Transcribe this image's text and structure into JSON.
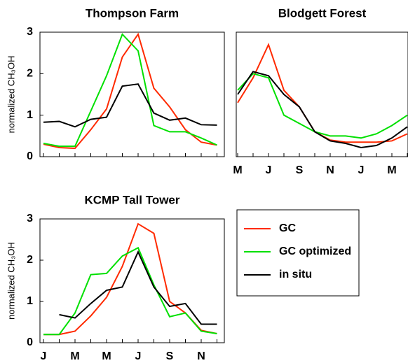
{
  "chart_data": [
    {
      "type": "line",
      "title": "Thompson Farm",
      "ylabel": "normalized CH₃OH",
      "categories": [
        null,
        null,
        null,
        null,
        null,
        null,
        null,
        null,
        null,
        null,
        null,
        null
      ],
      "ylim": [
        0,
        3
      ],
      "yticks": [
        0,
        1,
        2,
        3
      ],
      "series": [
        {
          "color": "#ff2a00",
          "values": [
            0.3,
            0.22,
            0.2,
            0.65,
            1.15,
            2.4,
            2.95,
            1.65,
            1.2,
            0.65,
            0.35,
            0.28
          ]
        },
        {
          "color": "#00e000",
          "values": [
            0.32,
            0.25,
            0.25,
            1.1,
            1.95,
            2.95,
            2.55,
            0.75,
            0.6,
            0.6,
            0.45,
            0.28
          ]
        },
        {
          "color": "#000000",
          "values": [
            0.83,
            0.85,
            0.72,
            0.9,
            0.95,
            1.7,
            1.75,
            1.05,
            0.88,
            0.93,
            0.77,
            0.76
          ]
        }
      ]
    },
    {
      "type": "line",
      "title": "Blodgett Forest",
      "categories": [
        "M",
        null,
        "J",
        null,
        "S",
        null,
        "N",
        null,
        "J",
        null,
        "M",
        null
      ],
      "ylim": [
        0,
        3
      ],
      "series": [
        {
          "color": "#ff2a00",
          "values": [
            1.3,
            1.9,
            2.7,
            1.6,
            1.2,
            0.6,
            0.4,
            0.35,
            0.35,
            0.35,
            0.38,
            0.55
          ]
        },
        {
          "color": "#00e000",
          "values": [
            1.6,
            2.0,
            1.9,
            1.0,
            0.8,
            0.6,
            0.5,
            0.5,
            0.45,
            0.55,
            0.75,
            1.0
          ]
        },
        {
          "color": "#000000",
          "values": [
            1.5,
            2.05,
            1.95,
            1.5,
            1.2,
            0.6,
            0.38,
            0.32,
            0.22,
            0.27,
            0.45,
            0.72
          ]
        }
      ]
    },
    {
      "type": "line",
      "title": "KCMP Tall Tower",
      "ylabel": "normalized CH₃OH",
      "categories": [
        "J",
        null,
        "M",
        null,
        "M",
        null,
        "J",
        null,
        "S",
        null,
        "N",
        null
      ],
      "ylim": [
        0,
        3
      ],
      "yticks": [
        0,
        1,
        2,
        3
      ],
      "legend": "right",
      "series": [
        {
          "name": "GC",
          "color": "#ff2a00",
          "values": [
            0.2,
            0.2,
            0.28,
            0.65,
            1.1,
            1.85,
            2.88,
            2.65,
            1.0,
            0.72,
            0.3,
            0.22
          ]
        },
        {
          "name": "GC optimized",
          "color": "#00e000",
          "values": [
            0.2,
            0.2,
            0.72,
            1.65,
            1.68,
            2.1,
            2.3,
            1.4,
            0.63,
            0.72,
            0.28,
            0.22
          ]
        },
        {
          "name": "in situ",
          "color": "#000000",
          "values": [
            null,
            0.68,
            0.6,
            0.95,
            1.27,
            1.35,
            2.2,
            1.35,
            0.88,
            0.95,
            0.45,
            0.45
          ]
        }
      ]
    }
  ]
}
